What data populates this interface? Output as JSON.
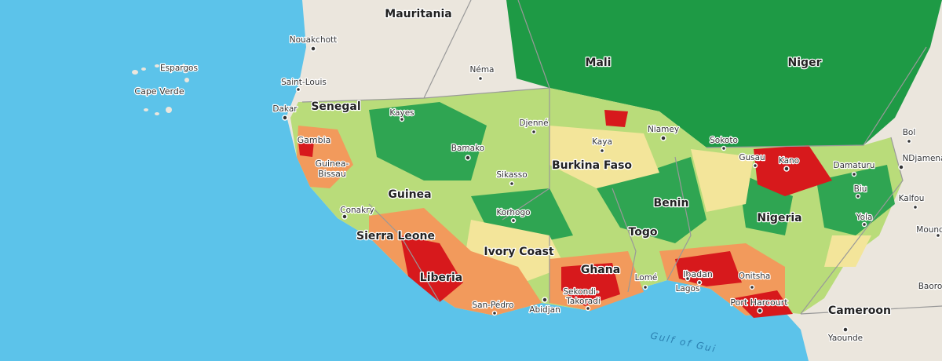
{
  "map": {
    "labels": [
      "Mauritania",
      "Nouakchott",
      "Espargos",
      "Cape Verde",
      "Saint-Louis",
      "Néma",
      "Mali",
      "Niger",
      "Dakar",
      "Senegal",
      "Kayes",
      "Djenné",
      "Gambia",
      "Bamako",
      "Kaya",
      "Niamey",
      "Sokoto",
      "Bol",
      "Gusau",
      "Kano",
      "Damaturu",
      "NDjamena",
      "Guinea-",
      "Bissau",
      "Burkina Faso",
      "Sikasso",
      "Guinea",
      "Biu",
      "Kalfou",
      "Conakry",
      "Benin",
      "Nigeria",
      "Yola",
      "Korhogo",
      "Mound",
      "Sierra Leone",
      "Togo",
      "Ivory Coast",
      "Ibadan",
      "Liberia",
      "Ghana",
      "Lomé",
      "Onitsha",
      "Lagos",
      "Sekondi-",
      "Takoradi",
      "San-Pédro",
      "Abidjan",
      "Port Harcourt",
      "Baoro",
      "Cameroon",
      "Gulf of Gui",
      "Yaounde"
    ]
  }
}
